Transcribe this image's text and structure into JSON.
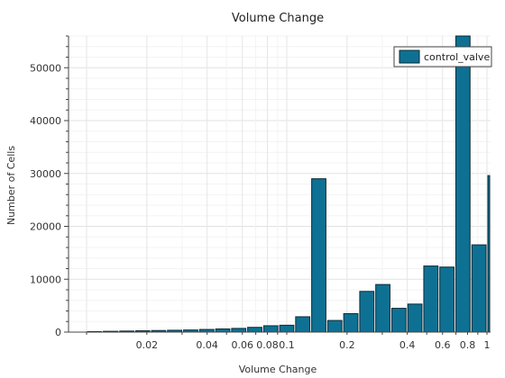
{
  "chart_data": {
    "type": "bar",
    "title": "Volume Change",
    "xlabel": "Volume Change",
    "ylabel": "Number of Cells",
    "x_scale": "log",
    "xlim": [
      0.01,
      1
    ],
    "ylim": [
      0,
      56000
    ],
    "grid": true,
    "legend_position": "top-right",
    "bar_color": "#0e7193",
    "bar_edge_color": "#0b2a35",
    "series": [
      {
        "name": "control_valve",
        "bins": [
          {
            "x0": 0.01,
            "x1": 0.012,
            "value": 100
          },
          {
            "x0": 0.012,
            "x1": 0.0145,
            "value": 150
          },
          {
            "x0": 0.0145,
            "x1": 0.0174,
            "value": 200
          },
          {
            "x0": 0.0174,
            "x1": 0.0209,
            "value": 250
          },
          {
            "x0": 0.0209,
            "x1": 0.0251,
            "value": 300
          },
          {
            "x0": 0.0251,
            "x1": 0.0302,
            "value": 350
          },
          {
            "x0": 0.0302,
            "x1": 0.0363,
            "value": 400
          },
          {
            "x0": 0.0363,
            "x1": 0.0437,
            "value": 500
          },
          {
            "x0": 0.0437,
            "x1": 0.0525,
            "value": 600
          },
          {
            "x0": 0.0525,
            "x1": 0.0631,
            "value": 700
          },
          {
            "x0": 0.0631,
            "x1": 0.0759,
            "value": 900
          },
          {
            "x0": 0.0759,
            "x1": 0.0912,
            "value": 1200
          },
          {
            "x0": 0.0912,
            "x1": 0.1096,
            "value": 1300
          },
          {
            "x0": 0.1096,
            "x1": 0.1318,
            "value": 2900
          },
          {
            "x0": 0.1318,
            "x1": 0.1585,
            "value": 29000
          },
          {
            "x0": 0.1585,
            "x1": 0.1905,
            "value": 2200
          },
          {
            "x0": 0.1905,
            "x1": 0.2291,
            "value": 3500
          },
          {
            "x0": 0.2291,
            "x1": 0.2754,
            "value": 7700
          },
          {
            "x0": 0.2754,
            "x1": 0.3311,
            "value": 9000
          },
          {
            "x0": 0.3311,
            "x1": 0.3981,
            "value": 4500
          },
          {
            "x0": 0.3981,
            "x1": 0.4786,
            "value": 5300
          },
          {
            "x0": 0.4786,
            "x1": 0.5754,
            "value": 12500
          },
          {
            "x0": 0.5754,
            "x1": 0.6918,
            "value": 12300
          },
          {
            "x0": 0.6918,
            "x1": 0.8318,
            "value": 56000
          },
          {
            "x0": 0.8318,
            "x1": 1.0,
            "value": 16500
          },
          {
            "x0": 1.0,
            "x1": 1.2023,
            "value": 29600
          }
        ]
      }
    ],
    "x_ticks": [
      {
        "value": 0.02,
        "label": "0.02"
      },
      {
        "value": 0.04,
        "label": "0.04"
      },
      {
        "value": 0.06,
        "label": "0.06"
      },
      {
        "value": 0.08,
        "label": "0.08"
      },
      {
        "value": 0.1,
        "label": "0.1"
      },
      {
        "value": 0.2,
        "label": "0.2"
      },
      {
        "value": 0.4,
        "label": "0.4"
      },
      {
        "value": 0.6,
        "label": "0.6"
      },
      {
        "value": 0.8,
        "label": "0.8"
      },
      {
        "value": 1,
        "label": "1"
      }
    ],
    "y_ticks": [
      {
        "value": 0,
        "label": "0"
      },
      {
        "value": 10000,
        "label": "10000"
      },
      {
        "value": 20000,
        "label": "20000"
      },
      {
        "value": 30000,
        "label": "30000"
      },
      {
        "value": 40000,
        "label": "40000"
      },
      {
        "value": 50000,
        "label": "50000"
      }
    ]
  }
}
